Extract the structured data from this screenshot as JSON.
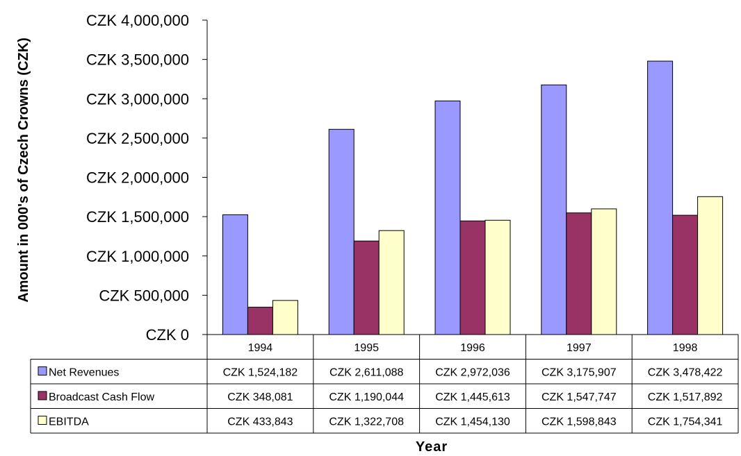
{
  "chart_data": {
    "type": "bar",
    "title": "",
    "xlabel": "Year",
    "ylabel": "Amount in 000's of Czech Crowns (CZK)",
    "categories": [
      "1994",
      "1995",
      "1996",
      "1997",
      "1998"
    ],
    "ylim": [
      0,
      4000000
    ],
    "yticks": [
      0,
      500000,
      1000000,
      1500000,
      2000000,
      2500000,
      3000000,
      3500000,
      4000000
    ],
    "ytick_labels": [
      "CZK 0",
      "CZK 500,000",
      "CZK 1,000,000",
      "CZK 1,500,000",
      "CZK 2,000,000",
      "CZK 2,500,000",
      "CZK 3,000,000",
      "CZK 3,500,000",
      "CZK 4,000,000"
    ],
    "grid": false,
    "legend": "data-table",
    "series": [
      {
        "name": "Net Revenues",
        "color": "#9999ff",
        "values": [
          1524182,
          2611088,
          2972036,
          3175907,
          3478422
        ],
        "labels": [
          "CZK 1,524,182",
          "CZK 2,611,088",
          "CZK 2,972,036",
          "CZK 3,175,907",
          "CZK 3,478,422"
        ]
      },
      {
        "name": "Broadcast Cash Flow",
        "color": "#993366",
        "values": [
          348081,
          1190044,
          1445613,
          1547747,
          1517892
        ],
        "labels": [
          "CZK 348,081",
          "CZK 1,190,044",
          "CZK 1,445,613",
          "CZK 1,547,747",
          "CZK 1,517,892"
        ]
      },
      {
        "name": "EBITDA",
        "color": "#ffffcc",
        "values": [
          433843,
          1322708,
          1454130,
          1598843,
          1754341
        ],
        "labels": [
          "CZK 433,843",
          "CZK 1,322,708",
          "CZK 1,454,130",
          "CZK 1,598,843",
          "CZK 1,754,341"
        ]
      }
    ]
  }
}
